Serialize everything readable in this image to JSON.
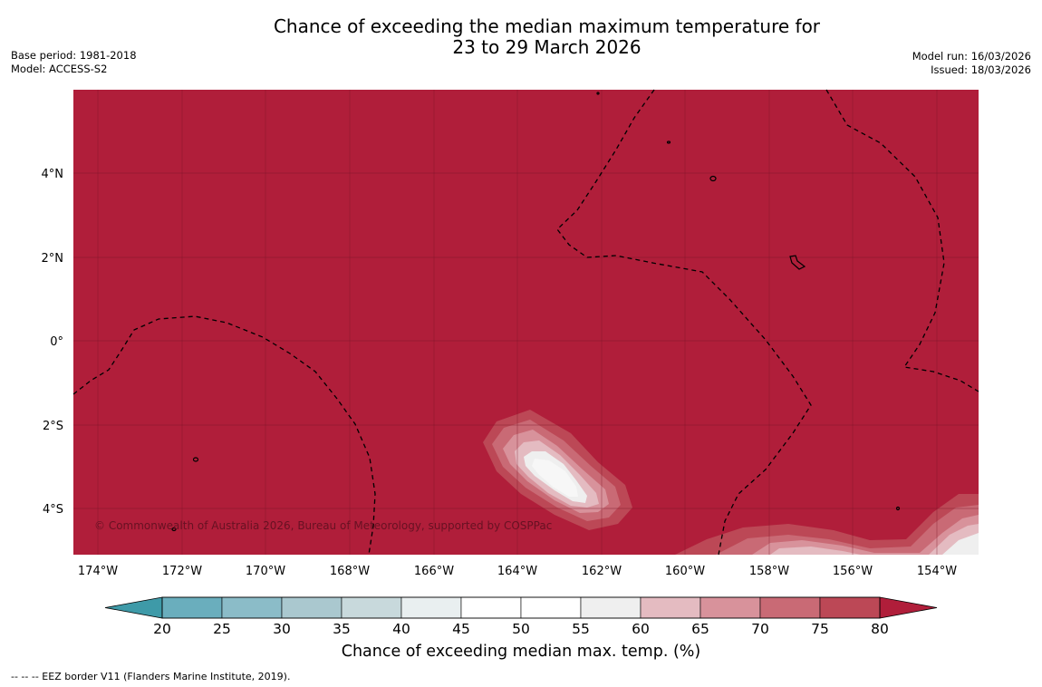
{
  "title_line1": "Chance of exceeding the median maximum temperature for",
  "title_line2": "23 to 29 March 2026",
  "meta_left": [
    "Base period: 1981-2018",
    "Model: ACCESS-S2"
  ],
  "meta_right": [
    "Model run: 16/03/2026",
    "Issued: 18/03/2026"
  ],
  "copyright": "© Commonwealth of Australia 2026, Bureau of Meteorology, supported by COSPPac",
  "lat_ticks": [
    "4°N",
    "2°N",
    "0°",
    "2°S",
    "4°S"
  ],
  "lon_ticks": [
    "174°W",
    "172°W",
    "170°W",
    "168°W",
    "166°W",
    "164°W",
    "162°W",
    "160°W",
    "158°W",
    "156°W",
    "154°W"
  ],
  "colorbar": {
    "title": "Chance of exceeding median max. temp. (%)",
    "tick_labels": [
      "20",
      "25",
      "30",
      "35",
      "40",
      "45",
      "50",
      "55",
      "60",
      "65",
      "70",
      "75",
      "80"
    ],
    "under_color": "#3e9aa8",
    "over_color": "#b01e3a",
    "colors": [
      "#6aaebd",
      "#8bbcc8",
      "#aac8cf",
      "#c8d9dc",
      "#e9eff0",
      "#ffffff",
      "#ffffff",
      "#efefef",
      "#e4bbc1",
      "#d8929b",
      "#c96a75",
      "#bc4856"
    ]
  },
  "footnote": "--  --  -- EEZ border V11 (Flanders Marine Institute, 2019)."
}
